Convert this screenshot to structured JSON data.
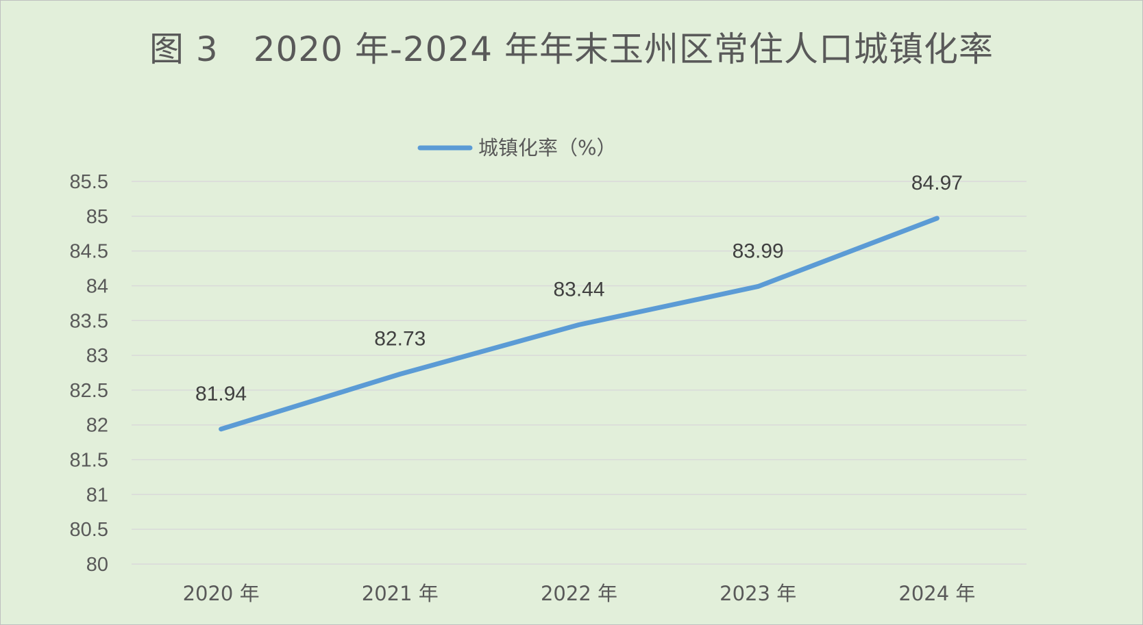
{
  "chart_data": {
    "type": "line",
    "title": "图 3　2020 年-2024 年年末玉州区常住人口城镇化率",
    "categories": [
      "2020 年",
      "2021 年",
      "2022 年",
      "2023 年",
      "2024 年"
    ],
    "series": [
      {
        "name": "城镇化率（%）",
        "values": [
          81.94,
          82.73,
          83.44,
          83.99,
          84.97
        ],
        "color": "#5b9bd5"
      }
    ],
    "y_ticks": [
      "80",
      "80.5",
      "81",
      "81.5",
      "82",
      "82.5",
      "83",
      "83.5",
      "84",
      "84.5",
      "85",
      "85.5"
    ],
    "ylim": [
      80,
      85.5
    ],
    "grid": true,
    "legend_position": "top-center",
    "data_labels": [
      "81.94",
      "82.73",
      "83.44",
      "83.99",
      "84.97"
    ]
  },
  "colors": {
    "background": "#e2efda",
    "line": "#5b9bd5",
    "grid": "#d9d9d9",
    "text": "#595959"
  }
}
